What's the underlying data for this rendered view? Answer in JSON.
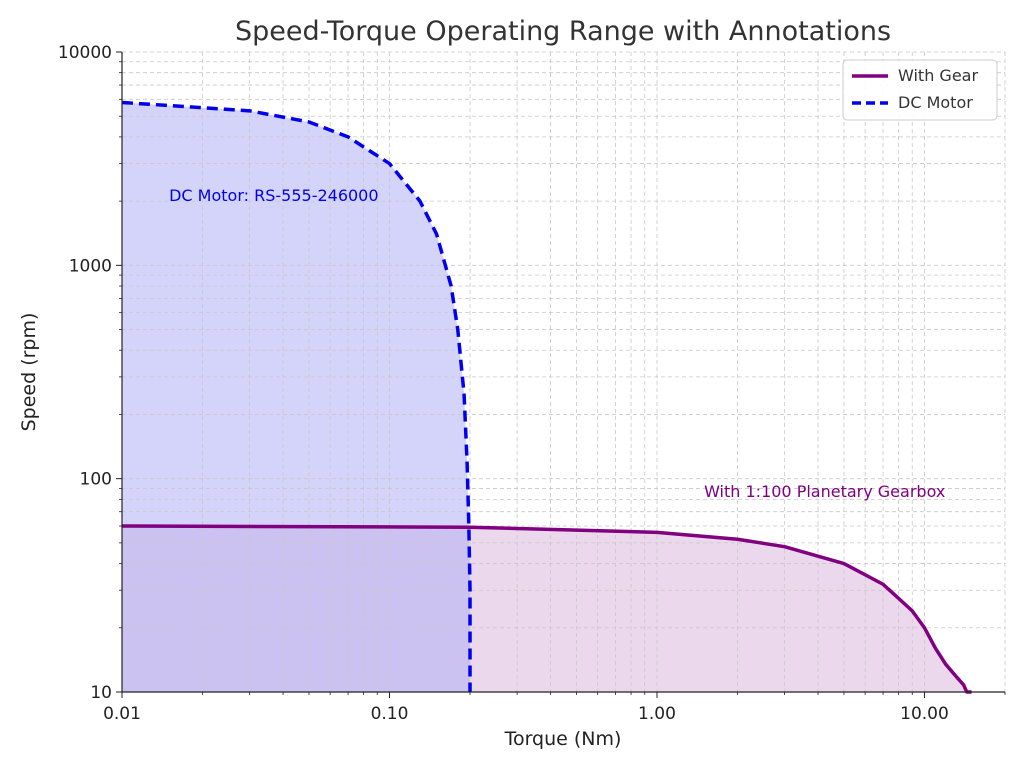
{
  "chart_data": {
    "type": "area",
    "title": "Speed-Torque Operating Range with Annotations",
    "xlabel": "Torque (Nm)",
    "ylabel": "Speed (rpm)",
    "xscale": "log",
    "yscale": "log",
    "xlim": [
      0.01,
      20
    ],
    "ylim": [
      10,
      10000
    ],
    "xticks": [
      0.01,
      0.1,
      1,
      10
    ],
    "xtick_labels": [
      "0.01",
      "0.10",
      "1.00",
      "10.00"
    ],
    "yticks": [
      10,
      100,
      1000,
      10000
    ],
    "ytick_labels": [
      "10",
      "100",
      "1000",
      "10000"
    ],
    "grid": true,
    "legend_position": "top-right",
    "series": [
      {
        "name": "With Gear",
        "color": "#800080",
        "fill_color": "#dcb8dc",
        "line_style": "solid",
        "x": [
          0.01,
          0.2,
          1,
          2,
          3,
          5,
          7,
          9,
          10,
          11,
          12,
          13,
          14,
          14.4,
          15
        ],
        "y": [
          60,
          59.2,
          56,
          52,
          48,
          40,
          32,
          24,
          20,
          16,
          13.5,
          12,
          10.8,
          10,
          10
        ]
      },
      {
        "name": "DC Motor",
        "color": "#0000ee",
        "fill_color": "#b0b0f8",
        "line_style": "dashed",
        "x": [
          0.01,
          0.03,
          0.05,
          0.07,
          0.1,
          0.13,
          0.15,
          0.17,
          0.18,
          0.19,
          0.195,
          0.198,
          0.2,
          0.2
        ],
        "y": [
          5800,
          5300,
          4700,
          4000,
          3000,
          2000,
          1400,
          800,
          500,
          250,
          120,
          60,
          30,
          10
        ]
      }
    ],
    "annotations": [
      {
        "text": "DC Motor: RS-555-246000",
        "x": 0.015,
        "y": 2000,
        "color": "#0000ee"
      },
      {
        "text": "With 1:100 Planetary Gearbox",
        "x": 1.5,
        "y": 82,
        "color": "#800080"
      }
    ]
  }
}
